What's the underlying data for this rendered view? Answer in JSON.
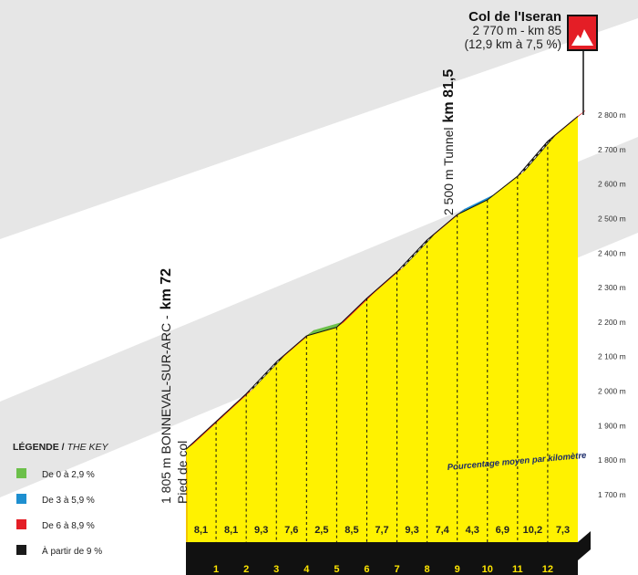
{
  "summit": {
    "name": "Col de l'Iseran",
    "line1": "2 770 m - km 85",
    "line2": "(12,9 km à 7,5 %)"
  },
  "tunnel": {
    "text": "2 500 m Tunnel",
    "km": "km 81,5"
  },
  "start": {
    "text": "1 805 m BONNEVAL-SUR-ARC -",
    "km": "km 72",
    "sub": "Pied de col"
  },
  "note": "Pourcentage moyen par kilomètre",
  "legend": {
    "title": "LÉGENDE /",
    "title_en": "THE KEY",
    "items": [
      {
        "label": "De 0 à 2,9 %",
        "color": "#6cc04a"
      },
      {
        "label": "De 3 à 5,9 %",
        "color": "#1e8fd0"
      },
      {
        "label": "De 6 à 8,9 %",
        "color": "#e41e26"
      },
      {
        "label": "À partir de 9 %",
        "color": "#1a1a1a"
      }
    ]
  },
  "colors": {
    "fill": "#fff200",
    "side": "#f2c500",
    "base": "#111111",
    "band": "#e6e6e6",
    "flag": "#e41e26"
  },
  "chart_data": {
    "type": "area",
    "title": "Col de l'Iseran",
    "x_unit": "km",
    "y_unit": "m",
    "ylim": [
      1700,
      2800
    ],
    "y_ticks": [
      1700,
      1800,
      1900,
      2000,
      2100,
      2200,
      2300,
      2400,
      2500,
      2600,
      2700,
      2800
    ],
    "y_tick_labels": [
      "1 700 m",
      "1 800 m",
      "1 900 m",
      "2 000 m",
      "2 100 m",
      "2 200 m",
      "2 300 m",
      "2 400 m",
      "2 500 m",
      "2 600 m",
      "2 700 m",
      "2 800 m"
    ],
    "km_labels": [
      "1",
      "2",
      "3",
      "4",
      "5",
      "6",
      "7",
      "8",
      "9",
      "10",
      "11",
      "12"
    ],
    "gradients": [
      8.1,
      8.1,
      9.3,
      7.6,
      2.5,
      8.5,
      7.7,
      9.3,
      7.4,
      4.3,
      6.9,
      10.2,
      7.3
    ],
    "gradient_labels": [
      "8,1",
      "8,1",
      "9,3",
      "7,6",
      "2,5",
      "8,5",
      "7,7",
      "9,3",
      "7,4",
      "4,3",
      "6,9",
      "10,2",
      "7,3"
    ],
    "start_elevation": 1805,
    "summit_elevation": 2770
  }
}
